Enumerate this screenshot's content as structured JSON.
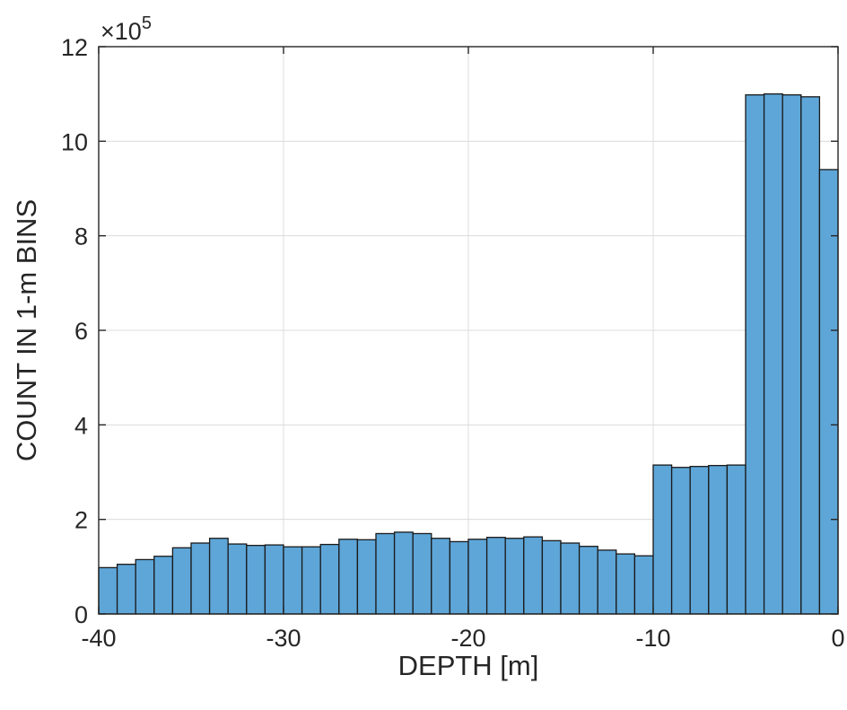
{
  "chart_data": {
    "type": "bar",
    "title": "",
    "xlabel": "DEPTH [m]",
    "ylabel": "COUNT IN 1-m BINS",
    "y_exponent_label": "×10",
    "y_exponent_power": "5",
    "y_multiplier": 100000,
    "xlim": [
      -40,
      0
    ],
    "ylim": [
      0,
      12
    ],
    "x_ticks": [
      -40,
      -30,
      -20,
      -10,
      0
    ],
    "y_ticks": [
      0,
      2,
      4,
      6,
      8,
      10,
      12
    ],
    "grid": true,
    "bin_width": 1,
    "bin_edges_start": [
      -40,
      -39,
      -38,
      -37,
      -36,
      -35,
      -34,
      -33,
      -32,
      -31,
      -30,
      -29,
      -28,
      -27,
      -26,
      -25,
      -24,
      -23,
      -22,
      -21,
      -20,
      -19,
      -18,
      -17,
      -16,
      -15,
      -14,
      -13,
      -12,
      -11,
      -10,
      -9,
      -8,
      -7,
      -6,
      -5,
      -4,
      -3,
      -2,
      -1
    ],
    "values": [
      0.98,
      1.05,
      1.15,
      1.22,
      1.4,
      1.5,
      1.6,
      1.48,
      1.45,
      1.46,
      1.42,
      1.42,
      1.47,
      1.58,
      1.57,
      1.7,
      1.73,
      1.7,
      1.6,
      1.53,
      1.58,
      1.62,
      1.6,
      1.63,
      1.55,
      1.5,
      1.43,
      1.35,
      1.27,
      1.23,
      3.15,
      3.1,
      3.12,
      3.14,
      3.15,
      10.98,
      11.0,
      10.98,
      10.94,
      9.4
    ],
    "bar_color": "#5ea6d8",
    "edge_color": "#1a1a1a"
  }
}
